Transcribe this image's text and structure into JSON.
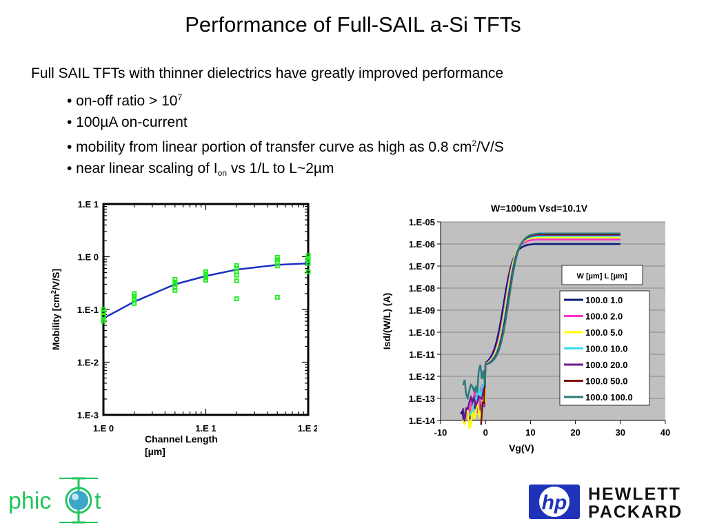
{
  "slide": {
    "title": "Performance of Full-SAIL a-Si TFTs",
    "intro": "Full SAIL TFTs with thinner dielectrics have greatly improved performance",
    "bullets": [
      {
        "pre": "• on-off ratio > 10",
        "sup": "7",
        "post": ""
      },
      {
        "pre": "• 100µA on-current",
        "sup": "",
        "post": ""
      },
      {
        "pre": "• mobility from linear portion of transfer curve as high as 0.8 cm",
        "sup": "2",
        "post": "/V/S"
      },
      {
        "pre": "• near linear scaling of I",
        "sub": "on",
        "post": " vs 1/L to L~2µm"
      }
    ]
  },
  "logos": {
    "left_text_a": "phic",
    "left_text_b": "t",
    "hp_mark": "hp",
    "hp_line1": "HEWLETT",
    "hp_line2": "PACKARD",
    "left_color": "#22c55e",
    "hp_blue": "#1f33b8"
  },
  "chart_data": [
    {
      "type": "scatter",
      "title": "",
      "xlabel": "Channel Length [µm]",
      "ylabel": "Mobility [cm2/V/S]",
      "x_scale": "log",
      "y_scale": "log",
      "xlim": [
        1,
        100
      ],
      "ylim": [
        0.001,
        10
      ],
      "x_ticks": [
        "1.E 0",
        "1.E 1",
        "1.E 2"
      ],
      "y_ticks": [
        "1.E 1",
        "1.E 0",
        "1.E-1",
        "1.E-2",
        "1.E-3"
      ],
      "marker_color": "#22ee22",
      "fit_color": "#1a2fc4",
      "series": [
        {
          "points": [
            [
              1,
              0.1
            ],
            [
              1,
              0.09
            ],
            [
              1,
              0.075
            ],
            [
              1,
              0.065
            ],
            [
              1,
              0.06
            ],
            [
              2,
              0.2
            ],
            [
              2,
              0.18
            ],
            [
              2,
              0.16
            ],
            [
              2,
              0.15
            ],
            [
              2,
              0.13
            ],
            [
              5,
              0.37
            ],
            [
              5,
              0.33
            ],
            [
              5,
              0.3
            ],
            [
              5,
              0.26
            ],
            [
              5,
              0.23
            ],
            [
              10,
              0.52
            ],
            [
              10,
              0.47
            ],
            [
              10,
              0.43
            ],
            [
              10,
              0.4
            ],
            [
              10,
              0.36
            ],
            [
              20,
              0.68
            ],
            [
              20,
              0.6
            ],
            [
              20,
              0.52
            ],
            [
              20,
              0.45
            ],
            [
              20,
              0.35
            ],
            [
              20,
              0.16
            ],
            [
              50,
              0.97
            ],
            [
              50,
              0.88
            ],
            [
              50,
              0.78
            ],
            [
              50,
              0.67
            ],
            [
              50,
              0.17
            ],
            [
              100,
              1.05
            ],
            [
              100,
              0.95
            ],
            [
              100,
              0.85
            ],
            [
              100,
              0.75
            ],
            [
              100,
              0.52
            ]
          ]
        }
      ],
      "fit": [
        [
          1,
          0.068
        ],
        [
          2,
          0.14
        ],
        [
          5,
          0.3
        ],
        [
          10,
          0.43
        ],
        [
          20,
          0.57
        ],
        [
          50,
          0.7
        ],
        [
          100,
          0.75
        ]
      ]
    },
    {
      "type": "line",
      "title": "W=100um Vsd=10.1V",
      "xlabel": "Vg(V)",
      "ylabel": "Isd/(W/L) (A)",
      "y_scale": "log",
      "xlim": [
        -10,
        40
      ],
      "ylim": [
        1e-14,
        1e-05
      ],
      "x_ticks": [
        "-10",
        "0",
        "10",
        "20",
        "30",
        "40"
      ],
      "y_ticks": [
        "1.E-05",
        "1.E-06",
        "1.E-07",
        "1.E-08",
        "1.E-09",
        "1.E-10",
        "1.E-11",
        "1.E-12",
        "1.E-13",
        "1.E-14"
      ],
      "plot_bg": "#c0c0c0",
      "legend_title": "W [µm]  L [µm]",
      "legend_position": "right",
      "series": [
        {
          "name": "100.0 1.0",
          "color": "#0a1a7a",
          "shift": 0.0,
          "sat": 1e-06,
          "low": 2e-14,
          "lowstart": -5.5
        },
        {
          "name": "100.0 2.0",
          "color": "#ff33cc",
          "shift": 0.4,
          "sat": 1.6e-06,
          "low": 4e-14,
          "lowstart": -4.5
        },
        {
          "name": "100.0 5.0",
          "color": "#ffff00",
          "shift": 0.6,
          "sat": 2e-06,
          "low": 1e-14,
          "lowstart": -5.0
        },
        {
          "name": "100.0 10.0",
          "color": "#33ddee",
          "shift": 0.8,
          "sat": 2.3e-06,
          "low": 6e-14,
          "lowstart": -3.5
        },
        {
          "name": "100.0 20.0",
          "color": "#6a1a8a",
          "shift": 1.0,
          "sat": 2.6e-06,
          "low": 3e-14,
          "lowstart": -5.0
        },
        {
          "name": "100.0 50.0",
          "color": "#7a1010",
          "shift": 1.1,
          "sat": 2.8e-06,
          "low": 2e-14,
          "lowstart": -1.0
        },
        {
          "name": "100.0 100.0",
          "color": "#2a7a7a",
          "shift": 1.2,
          "sat": 3e-06,
          "low": 3e-13,
          "lowstart": -5.0
        }
      ]
    }
  ]
}
